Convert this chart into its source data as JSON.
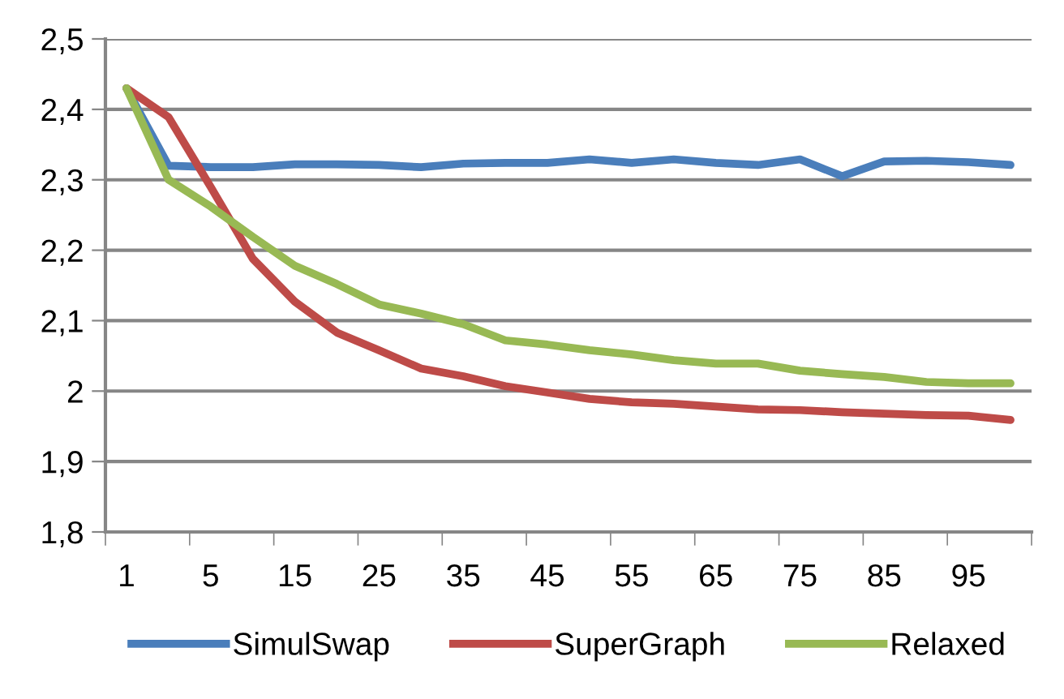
{
  "chart_data": {
    "type": "line",
    "categories": [
      "1",
      null,
      "5",
      null,
      "15",
      null,
      "25",
      null,
      "35",
      null,
      "45",
      null,
      "55",
      null,
      "65",
      null,
      "75",
      null,
      "85",
      null,
      "95",
      null
    ],
    "series": [
      {
        "name": "SimulSwap",
        "color": "#4a7ebb",
        "values": [
          2.43,
          2.32,
          2.318,
          2.318,
          2.322,
          2.322,
          2.321,
          2.318,
          2.323,
          2.324,
          2.324,
          2.329,
          2.324,
          2.329,
          2.324,
          2.321,
          2.329,
          2.305,
          2.326,
          2.327,
          2.325,
          2.321
        ]
      },
      {
        "name": "SuperGraph",
        "color": "#be4b48",
        "values": [
          2.43,
          2.389,
          2.29,
          2.188,
          2.127,
          2.083,
          2.058,
          2.032,
          2.021,
          2.007,
          1.998,
          1.989,
          1.984,
          1.982,
          1.978,
          1.974,
          1.973,
          1.97,
          1.968,
          1.966,
          1.965,
          1.959
        ]
      },
      {
        "name": "Relaxed",
        "color": "#98b954",
        "values": [
          2.43,
          2.3,
          2.262,
          2.219,
          2.178,
          2.152,
          2.123,
          2.11,
          2.095,
          2.072,
          2.066,
          2.058,
          2.052,
          2.044,
          2.039,
          2.039,
          2.029,
          2.024,
          2.02,
          2.013,
          2.011,
          2.011
        ]
      }
    ],
    "ylim": [
      1.8,
      2.5
    ],
    "yticks": [
      {
        "value": 1.8,
        "label": "1,8"
      },
      {
        "value": 1.9,
        "label": "1,9"
      },
      {
        "value": 2,
        "label": "2"
      },
      {
        "value": 2.1,
        "label": "2,1"
      },
      {
        "value": 2.2,
        "label": "2,2"
      },
      {
        "value": 2.3,
        "label": "2,3"
      },
      {
        "value": 2.4,
        "label": "2,4"
      },
      {
        "value": 2.5,
        "label": "2,5"
      }
    ],
    "grid": "y",
    "legend": "bottom",
    "marker": "none",
    "line_style": "solid"
  }
}
